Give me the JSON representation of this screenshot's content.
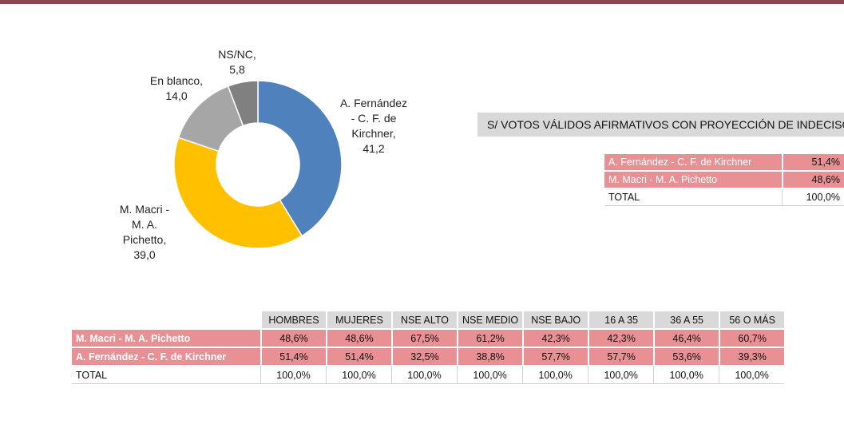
{
  "chart_data": {
    "type": "pie",
    "donut": true,
    "title": "",
    "slices": [
      {
        "label_lines": [
          "A. Fernández",
          "- C. F. de",
          "Kirchner,",
          "41,2"
        ],
        "value": 41.2,
        "color": "#4f81bd"
      },
      {
        "label_lines": [
          "M. Macri -",
          "M. A.",
          "Pichetto,",
          "39,0"
        ],
        "value": 39.0,
        "color": "#ffc000"
      },
      {
        "label_lines": [
          "En blanco,",
          "14,0"
        ],
        "value": 14.0,
        "color": "#a6a6a6"
      },
      {
        "label_lines": [
          "NS/NC,",
          "5,8"
        ],
        "value": 5.8,
        "color": "#808080"
      }
    ]
  },
  "summary": {
    "heading": "S/ VOTOS VÁLIDOS AFIRMATIVOS CON PROYECCIÓN DE INDECISOS",
    "rows": [
      {
        "label": "A. Fernández - C. F. de Kirchner",
        "value": "51,4%"
      },
      {
        "label": "M. Macri - M. A. Pichetto",
        "value": "48,6%"
      },
      {
        "label": "TOTAL",
        "value": "100,0%"
      }
    ]
  },
  "segments": {
    "headers": [
      "HOMBRES",
      "MUJERES",
      "NSE ALTO",
      "NSE MEDIO",
      "NSE BAJO",
      "16 A 35",
      "36 A 55",
      "56 O MÁS"
    ],
    "rows": [
      {
        "label": "M. Macri - M. A. Pichetto",
        "values": [
          "48,6%",
          "48,6%",
          "67,5%",
          "61,2%",
          "42,3%",
          "42,3%",
          "46,4%",
          "60,7%"
        ]
      },
      {
        "label": "A. Fernández - C. F. de Kirchner",
        "values": [
          "51,4%",
          "51,4%",
          "32,5%",
          "38,8%",
          "57,7%",
          "57,7%",
          "53,6%",
          "39,3%"
        ]
      },
      {
        "label": "TOTAL",
        "values": [
          "100,0%",
          "100,0%",
          "100,0%",
          "100,0%",
          "100,0%",
          "100,0%",
          "100,0%",
          "100,0%"
        ]
      }
    ]
  }
}
